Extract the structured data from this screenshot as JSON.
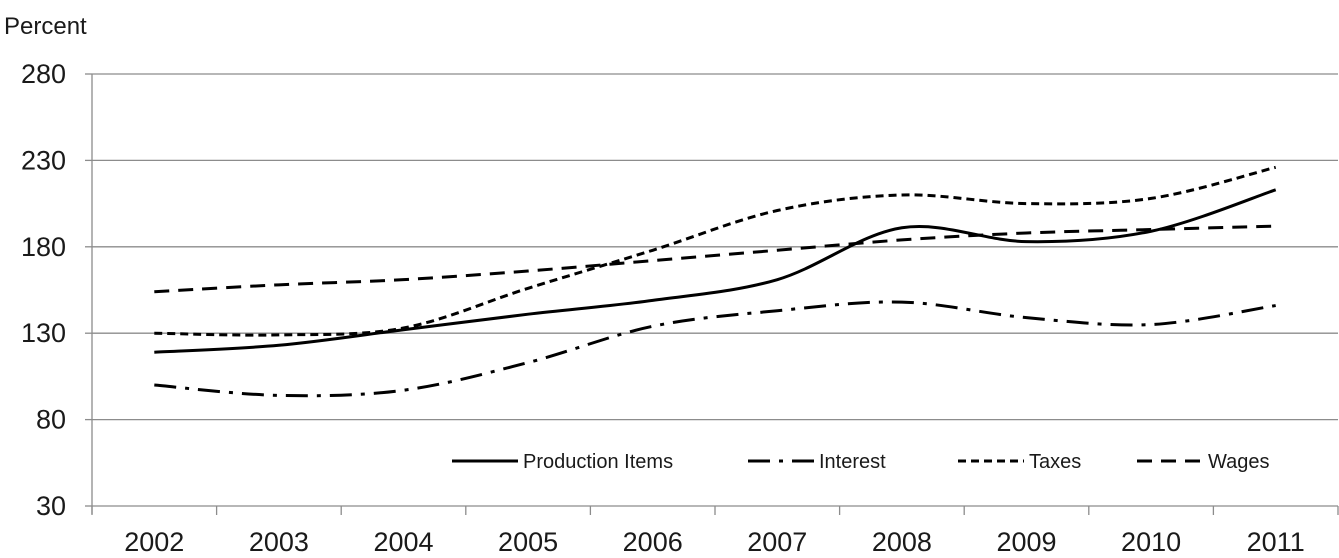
{
  "chart_data": {
    "type": "line",
    "ylabel": "Percent",
    "ylim": [
      30,
      280
    ],
    "yticks": [
      "30",
      "80",
      "130",
      "180",
      "230",
      "280"
    ],
    "x": [
      "2002",
      "2003",
      "2004",
      "2005",
      "2006",
      "2007",
      "2008",
      "2009",
      "2010",
      "2011"
    ],
    "grid": true,
    "legend_position": "bottom-right",
    "series": [
      {
        "name": "Production Items",
        "dash": "solid",
        "values": [
          119,
          123,
          132,
          141,
          149,
          161,
          191,
          183,
          189,
          213
        ]
      },
      {
        "name": "Interest",
        "dash": "dashdot",
        "values": [
          100,
          94,
          97,
          113,
          134,
          143,
          148,
          139,
          135,
          146
        ]
      },
      {
        "name": "Taxes",
        "dash": "dotted",
        "values": [
          130,
          129,
          133,
          156,
          178,
          201,
          210,
          205,
          208,
          226
        ]
      },
      {
        "name": "Wages",
        "dash": "dashed",
        "values": [
          154,
          158,
          161,
          166,
          172,
          178,
          184,
          188,
          190,
          192
        ]
      }
    ]
  }
}
